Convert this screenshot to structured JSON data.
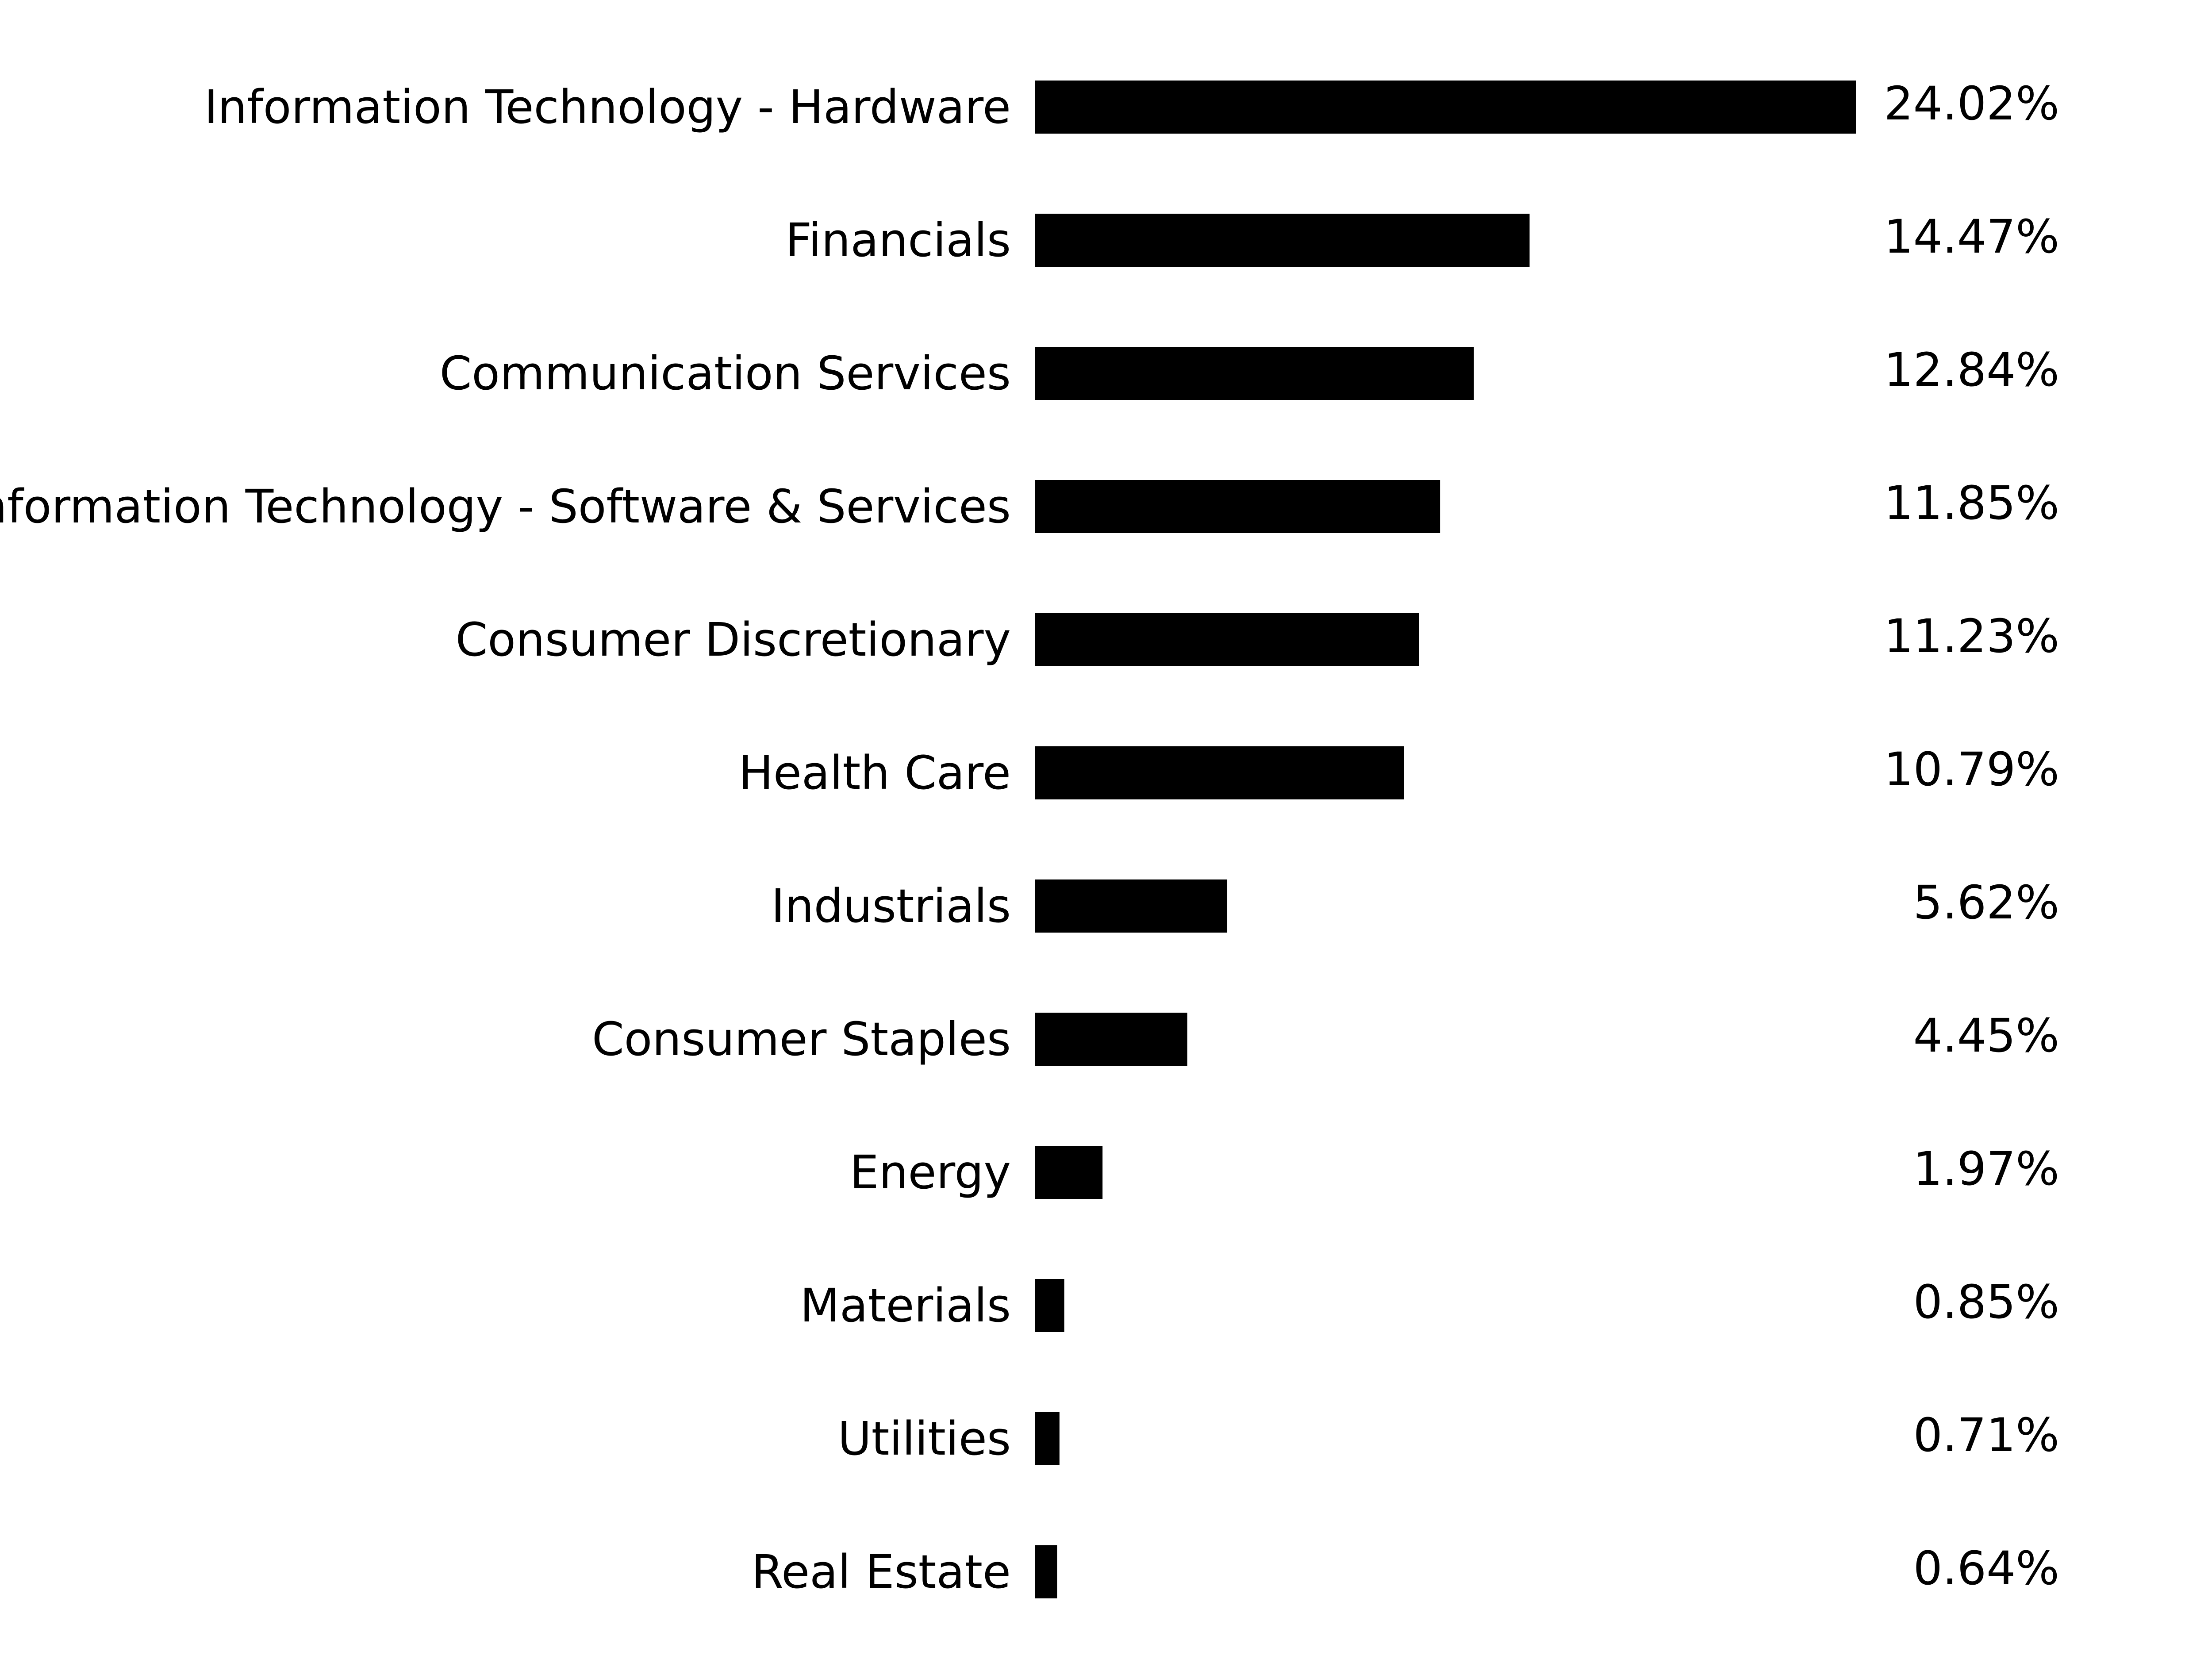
{
  "chart_data": {
    "type": "bar",
    "orientation": "horizontal",
    "categories": [
      "Information Technology - Hardware",
      "Financials",
      "Communication Services",
      "Information Technology - Software & Services",
      "Consumer Discretionary",
      "Health Care",
      "Industrials",
      "Consumer Staples",
      "Energy",
      "Materials",
      "Utilities",
      "Real Estate"
    ],
    "values": [
      24.02,
      14.47,
      12.84,
      11.85,
      11.23,
      10.79,
      5.62,
      4.45,
      1.97,
      0.85,
      0.71,
      0.64
    ],
    "value_labels": [
      "24.02%",
      "14.47%",
      "12.84%",
      "11.85%",
      "11.23%",
      "10.79%",
      "5.62%",
      "4.45%",
      "1.97%",
      "0.85%",
      "0.71%",
      "0.64%"
    ],
    "bar_color": "#000000",
    "xlim": [
      0,
      24.02
    ],
    "grid": false,
    "legend": "none"
  }
}
